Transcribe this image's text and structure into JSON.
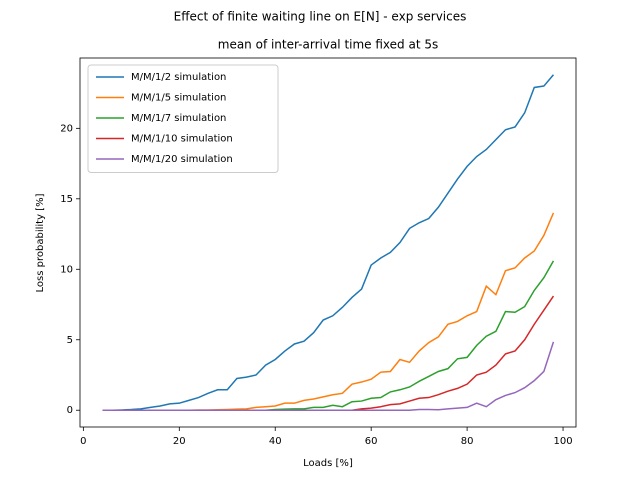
{
  "chart_data": {
    "type": "line",
    "suptitle": "Effect of finite waiting line on E[N] - exp services",
    "title": "mean of inter-arrival time fixed at 5s",
    "x_label": "Loads [%]",
    "y_label": "Loss probability [%]",
    "x": [
      4,
      6,
      8,
      10,
      12,
      14,
      16,
      18,
      20,
      22,
      24,
      26,
      28,
      30,
      32,
      34,
      36,
      38,
      40,
      42,
      44,
      46,
      48,
      50,
      52,
      54,
      56,
      58,
      60,
      62,
      64,
      66,
      68,
      70,
      72,
      74,
      76,
      78,
      80,
      82,
      84,
      86,
      88,
      90,
      92,
      94,
      96,
      98
    ],
    "series": [
      {
        "name": "M/M/1/2 simulation",
        "color": "#1f77b4",
        "values": [
          0,
          0,
          0.02,
          0.05,
          0.1,
          0.2,
          0.3,
          0.45,
          0.5,
          0.7,
          0.9,
          1.2,
          1.45,
          1.45,
          2.25,
          2.35,
          2.5,
          3.2,
          3.6,
          4.2,
          4.7,
          4.9,
          5.5,
          6.4,
          6.7,
          7.3,
          8.0,
          8.6,
          10.3,
          10.8,
          11.2,
          11.9,
          12.9,
          13.3,
          13.6,
          14.4,
          15.4,
          16.4,
          17.3,
          18.0,
          18.5,
          19.2,
          19.9,
          20.1,
          21.1,
          22.9,
          23.0,
          23.8
        ]
      },
      {
        "name": "M/M/1/5 simulation",
        "color": "#ff7f0e",
        "values": [
          0,
          0,
          0,
          0,
          0,
          0,
          0,
          0,
          0,
          0,
          0.02,
          0.02,
          0.03,
          0.05,
          0.08,
          0.1,
          0.2,
          0.25,
          0.3,
          0.5,
          0.5,
          0.7,
          0.8,
          0.95,
          1.1,
          1.2,
          1.85,
          2.0,
          2.2,
          2.7,
          2.75,
          3.6,
          3.4,
          4.2,
          4.8,
          5.2,
          6.1,
          6.3,
          6.7,
          7.0,
          8.8,
          8.2,
          9.9,
          10.1,
          10.8,
          11.3,
          12.4,
          14.0
        ]
      },
      {
        "name": "M/M/1/7 simulation",
        "color": "#2ca02c",
        "values": [
          0,
          0,
          0,
          0,
          0,
          0,
          0,
          0,
          0,
          0,
          0,
          0,
          0,
          0,
          0,
          0,
          0,
          0,
          0.05,
          0.08,
          0.1,
          0.1,
          0.2,
          0.2,
          0.35,
          0.25,
          0.6,
          0.65,
          0.85,
          0.9,
          1.3,
          1.45,
          1.65,
          2.05,
          2.4,
          2.75,
          2.95,
          3.65,
          3.75,
          4.6,
          5.25,
          5.6,
          7.0,
          6.95,
          7.35,
          8.5,
          9.4,
          10.6
        ]
      },
      {
        "name": "M/M/1/10 simulation",
        "color": "#d62728",
        "values": [
          0,
          0,
          0,
          0,
          0,
          0,
          0,
          0,
          0,
          0,
          0,
          0,
          0,
          0,
          0,
          0,
          0,
          0,
          0,
          0,
          0,
          0,
          0,
          0,
          0,
          0,
          0,
          0.1,
          0.15,
          0.25,
          0.4,
          0.45,
          0.65,
          0.85,
          0.9,
          1.1,
          1.35,
          1.55,
          1.85,
          2.5,
          2.7,
          3.2,
          4.0,
          4.2,
          5.0,
          6.1,
          7.1,
          8.1
        ]
      },
      {
        "name": "M/M/1/20 simulation",
        "color": "#9467bd",
        "values": [
          0,
          0,
          0,
          0,
          0,
          0,
          0,
          0,
          0,
          0,
          0,
          0,
          0,
          0,
          0,
          0,
          0,
          0,
          0,
          0,
          0,
          0,
          0,
          0,
          0,
          0,
          0,
          0,
          0,
          0,
          0,
          0,
          0,
          0.05,
          0.05,
          0.03,
          0.1,
          0.15,
          0.2,
          0.5,
          0.25,
          0.75,
          1.05,
          1.25,
          1.6,
          2.1,
          2.75,
          4.85
        ]
      }
    ],
    "xlim": [
      -0.7,
      102.7
    ],
    "ylim": [
      -1.19,
      24.99
    ],
    "xticks": [
      0,
      20,
      40,
      60,
      80,
      100
    ],
    "yticks": [
      0,
      5,
      10,
      15,
      20
    ],
    "grid": false,
    "legend": "upper-left"
  }
}
